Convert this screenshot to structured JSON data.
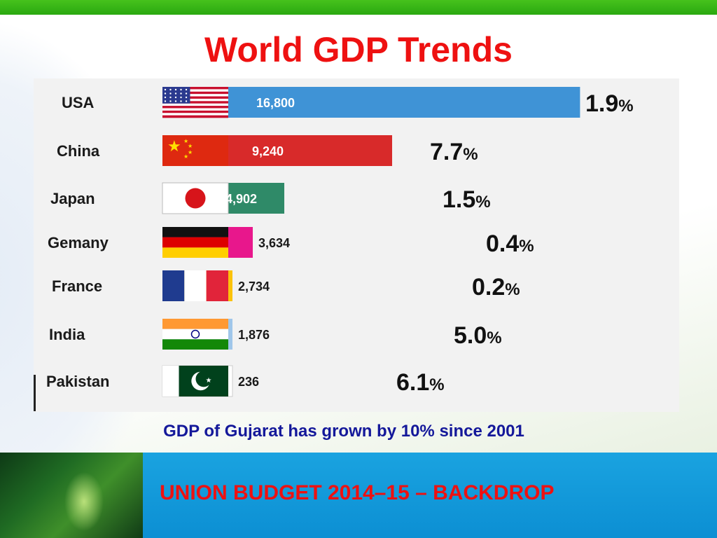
{
  "slide": {
    "title": "World GDP Trends",
    "subtitle": "GDP of Gujarat has grown by 10% since 2001",
    "footer": "UNION BUDGET  2014–15 – BACKDROP"
  },
  "colors": {
    "title": "#ee1111",
    "subtitle": "#14189a",
    "footer_band": "#1aa3e0",
    "top_band": "#2aa810"
  },
  "chart_data": {
    "type": "bar",
    "orientation": "horizontal",
    "categories": [
      "USA",
      "China",
      "Japan",
      "Gemany",
      "France",
      "India",
      "Pakistan"
    ],
    "values": [
      16800,
      9240,
      4902,
      3634,
      2734,
      1876,
      236
    ],
    "value_labels": [
      "16,800",
      "9,240",
      "4,902",
      "3,634",
      "2,734",
      "1,876",
      "236"
    ],
    "growth": [
      "1.9",
      "7.7",
      "1.5",
      "0.4",
      "0.2",
      "5.0",
      "6.1"
    ],
    "growth_unit": "%",
    "bar_colors": [
      "#3f93d6",
      "#d82a2a",
      "#2f8a68",
      "#e8178c",
      "#fbc20a",
      "#9fc6ea",
      "#ffffff"
    ],
    "flags": [
      "usa-flag",
      "china-flag",
      "japan-flag",
      "germany-flag",
      "france-flag",
      "india-flag",
      "pakistan-flag"
    ],
    "title": "",
    "xlabel": "",
    "ylabel": "",
    "grid": false,
    "legend": "none"
  }
}
